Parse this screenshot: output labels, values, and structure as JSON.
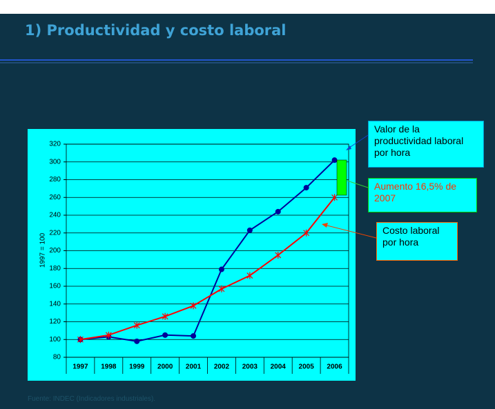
{
  "title": "1) Productividad y costo laboral",
  "source": "Fuente: INDEC (Indicadores industriales).",
  "chart_data": {
    "type": "line",
    "ylabel": "1997 = 100",
    "categories": [
      "1997",
      "1998",
      "1999",
      "2000",
      "2001",
      "2002",
      "2003",
      "2004",
      "2005",
      "2006"
    ],
    "series": [
      {
        "color": "#000099",
        "marker": "circle",
        "values": [
          100,
          103,
          98,
          105,
          104,
          179,
          223,
          244,
          271,
          302
        ]
      },
      {
        "color": "#ff0000",
        "marker": "x",
        "values": [
          100,
          105,
          116,
          126,
          138,
          157,
          172,
          195,
          220,
          260
        ]
      }
    ],
    "ylim": [
      80,
      320
    ],
    "yticks": [
      80,
      100,
      120,
      140,
      160,
      180,
      200,
      220,
      240,
      260,
      280,
      300,
      320
    ],
    "grid": true,
    "annotations": [
      "Valor de la productividad laboral por hora",
      "Aumento 16,5% de 2007",
      "Costo laboral por hora"
    ]
  }
}
